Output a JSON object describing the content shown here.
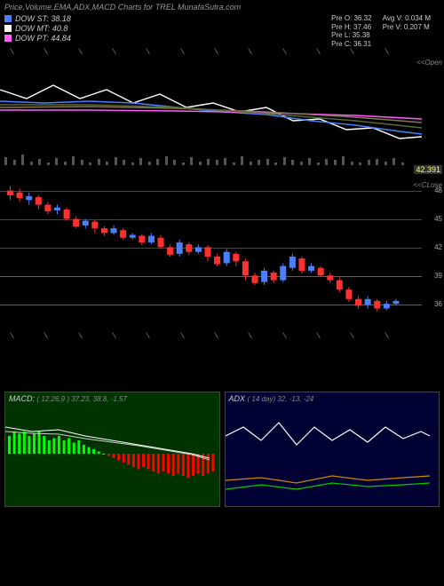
{
  "header": {
    "title": "Price,Volume,EMA,ADX,MACD Charts for TREL MunafaSutra.com"
  },
  "legend": {
    "items": [
      {
        "label": "DOW ST: 38.18",
        "color": "#4a7fff"
      },
      {
        "label": "DOW MT: 40.8",
        "color": "#ffffff"
      },
      {
        "label": "DOW PT: 44.84",
        "color": "#ff5fff"
      }
    ],
    "pre_col1": [
      "Pre  O: 36.32",
      "Pre  H: 37.46",
      "Pre  L: 35.38",
      "Pre  C: 36.31"
    ],
    "pre_col2": [
      "Avg V: 0.034  M",
      "Pre  V: 0.207 M"
    ]
  },
  "top_chart": {
    "height": 120,
    "open_label": "<<Open",
    "ema_lines": [
      {
        "color": "#ffffff",
        "pts": [
          [
            0,
            35
          ],
          [
            30,
            45
          ],
          [
            60,
            30
          ],
          [
            90,
            45
          ],
          [
            120,
            35
          ],
          [
            150,
            50
          ],
          [
            180,
            40
          ],
          [
            210,
            55
          ],
          [
            240,
            50
          ],
          [
            270,
            60
          ],
          [
            300,
            55
          ],
          [
            330,
            70
          ],
          [
            360,
            68
          ],
          [
            390,
            80
          ],
          [
            420,
            78
          ],
          [
            450,
            90
          ],
          [
            475,
            88
          ]
        ]
      },
      {
        "color": "#4a7fff",
        "pts": [
          [
            0,
            48
          ],
          [
            50,
            50
          ],
          [
            100,
            48
          ],
          [
            150,
            50
          ],
          [
            200,
            55
          ],
          [
            250,
            60
          ],
          [
            300,
            63
          ],
          [
            350,
            70
          ],
          [
            400,
            75
          ],
          [
            450,
            82
          ],
          [
            475,
            85
          ]
        ]
      },
      {
        "color": "#ff5fff",
        "pts": [
          [
            0,
            58
          ],
          [
            100,
            58
          ],
          [
            200,
            59
          ],
          [
            300,
            61
          ],
          [
            400,
            64
          ],
          [
            475,
            68
          ]
        ]
      },
      {
        "color": "#8b7355",
        "pts": [
          [
            0,
            55
          ],
          [
            100,
            54
          ],
          [
            200,
            56
          ],
          [
            300,
            60
          ],
          [
            400,
            66
          ],
          [
            475,
            72
          ]
        ]
      },
      {
        "color": "#556b2f",
        "pts": [
          [
            0,
            52
          ],
          [
            100,
            52
          ],
          [
            200,
            55
          ],
          [
            300,
            62
          ],
          [
            400,
            70
          ],
          [
            475,
            78
          ]
        ]
      }
    ],
    "volumes": [
      8,
      5,
      10,
      4,
      6,
      3,
      7,
      4,
      9,
      5,
      3,
      6,
      4,
      8,
      5,
      3,
      7,
      4,
      6,
      9,
      5,
      3,
      8,
      4,
      6,
      5,
      7,
      3,
      9,
      4,
      5,
      6,
      3,
      8,
      5,
      4,
      7,
      3,
      6,
      5,
      9,
      4,
      3,
      5,
      6,
      4,
      7,
      3
    ]
  },
  "close_marker": {
    "value": "42.391",
    "color": "#ffff80"
  },
  "candle_chart": {
    "height": 170,
    "y_min": 33,
    "y_max": 49,
    "grid_lines": [
      {
        "v": 48,
        "color": "#444"
      },
      {
        "v": 45,
        "color": "#444"
      },
      {
        "v": 42,
        "color": "#444"
      },
      {
        "v": 39,
        "color": "#806000"
      },
      {
        "v": 36,
        "color": "#806000"
      }
    ],
    "y_labels": [
      "48",
      "45",
      "42",
      "39",
      "36"
    ],
    "close_label": "<<CLose",
    "candles": [
      {
        "o": 48.0,
        "c": 47.5,
        "h": 48.5,
        "l": 47.0,
        "t": "d"
      },
      {
        "o": 47.8,
        "c": 47.2,
        "h": 48.2,
        "l": 46.8,
        "t": "d"
      },
      {
        "o": 47.0,
        "c": 47.4,
        "h": 47.8,
        "l": 46.5,
        "t": "u"
      },
      {
        "o": 47.3,
        "c": 46.5,
        "h": 47.5,
        "l": 46.0,
        "t": "d"
      },
      {
        "o": 46.5,
        "c": 45.8,
        "h": 46.8,
        "l": 45.5,
        "t": "d"
      },
      {
        "o": 45.9,
        "c": 46.2,
        "h": 46.5,
        "l": 45.5,
        "t": "u"
      },
      {
        "o": 46.0,
        "c": 45.0,
        "h": 46.2,
        "l": 44.8,
        "t": "d"
      },
      {
        "o": 45.0,
        "c": 44.2,
        "h": 45.3,
        "l": 44.0,
        "t": "d"
      },
      {
        "o": 44.3,
        "c": 44.8,
        "h": 45.0,
        "l": 44.0,
        "t": "u"
      },
      {
        "o": 44.7,
        "c": 44.0,
        "h": 44.9,
        "l": 43.5,
        "t": "d"
      },
      {
        "o": 44.0,
        "c": 43.5,
        "h": 44.2,
        "l": 43.2,
        "t": "d"
      },
      {
        "o": 43.5,
        "c": 44.0,
        "h": 44.3,
        "l": 43.3,
        "t": "u"
      },
      {
        "o": 43.8,
        "c": 43.0,
        "h": 44.0,
        "l": 42.8,
        "t": "d"
      },
      {
        "o": 43.0,
        "c": 43.3,
        "h": 43.5,
        "l": 42.8,
        "t": "u"
      },
      {
        "o": 43.2,
        "c": 42.5,
        "h": 43.4,
        "l": 42.2,
        "t": "d"
      },
      {
        "o": 42.5,
        "c": 43.2,
        "h": 43.5,
        "l": 42.3,
        "t": "u"
      },
      {
        "o": 43.0,
        "c": 42.0,
        "h": 43.3,
        "l": 41.8,
        "t": "d"
      },
      {
        "o": 42.0,
        "c": 41.2,
        "h": 42.3,
        "l": 41.0,
        "t": "d"
      },
      {
        "o": 41.3,
        "c": 42.5,
        "h": 42.8,
        "l": 41.0,
        "t": "u"
      },
      {
        "o": 42.3,
        "c": 41.5,
        "h": 42.5,
        "l": 41.2,
        "t": "d"
      },
      {
        "o": 41.5,
        "c": 42.0,
        "h": 42.3,
        "l": 41.3,
        "t": "u"
      },
      {
        "o": 42.0,
        "c": 41.0,
        "h": 42.2,
        "l": 40.5,
        "t": "d"
      },
      {
        "o": 41.0,
        "c": 40.2,
        "h": 41.3,
        "l": 40.0,
        "t": "d"
      },
      {
        "o": 40.3,
        "c": 41.5,
        "h": 41.8,
        "l": 40.0,
        "t": "u"
      },
      {
        "o": 41.3,
        "c": 40.5,
        "h": 41.5,
        "l": 40.0,
        "t": "d"
      },
      {
        "o": 40.5,
        "c": 39.0,
        "h": 40.8,
        "l": 38.5,
        "t": "d"
      },
      {
        "o": 39.0,
        "c": 38.2,
        "h": 39.3,
        "l": 38.0,
        "t": "d"
      },
      {
        "o": 38.3,
        "c": 39.5,
        "h": 39.8,
        "l": 38.0,
        "t": "u"
      },
      {
        "o": 39.3,
        "c": 38.5,
        "h": 39.5,
        "l": 38.2,
        "t": "d"
      },
      {
        "o": 38.5,
        "c": 40.0,
        "h": 40.3,
        "l": 38.3,
        "t": "u"
      },
      {
        "o": 39.8,
        "c": 41.0,
        "h": 41.3,
        "l": 39.5,
        "t": "u"
      },
      {
        "o": 40.8,
        "c": 39.5,
        "h": 41.0,
        "l": 39.2,
        "t": "d"
      },
      {
        "o": 39.5,
        "c": 40.0,
        "h": 40.3,
        "l": 39.3,
        "t": "u"
      },
      {
        "o": 39.8,
        "c": 39.0,
        "h": 40.0,
        "l": 38.8,
        "t": "d"
      },
      {
        "o": 39.0,
        "c": 38.5,
        "h": 39.3,
        "l": 38.2,
        "t": "d"
      },
      {
        "o": 38.5,
        "c": 37.5,
        "h": 38.8,
        "l": 37.2,
        "t": "d"
      },
      {
        "o": 37.5,
        "c": 36.5,
        "h": 37.8,
        "l": 36.2,
        "t": "d"
      },
      {
        "o": 36.5,
        "c": 35.8,
        "h": 36.8,
        "l": 35.5,
        "t": "d"
      },
      {
        "o": 35.9,
        "c": 36.5,
        "h": 36.8,
        "l": 35.5,
        "t": "u"
      },
      {
        "o": 36.3,
        "c": 35.5,
        "h": 36.5,
        "l": 35.2,
        "t": "d"
      },
      {
        "o": 35.5,
        "c": 36.0,
        "h": 36.3,
        "l": 35.3,
        "t": "u"
      },
      {
        "o": 36.0,
        "c": 36.3,
        "h": 36.5,
        "l": 35.8,
        "t": "u"
      }
    ]
  },
  "month_ticks": [
    "",
    "",
    "",
    "",
    "",
    "",
    "",
    "",
    "",
    "",
    "",
    ""
  ],
  "macd": {
    "title": "MACD:",
    "params": "( 12,26,9 ) 37.23,  38.8,  -1.57",
    "bg": "#003300",
    "hist": [
      0.4,
      0.5,
      0.45,
      0.5,
      0.4,
      0.45,
      0.5,
      0.4,
      0.3,
      0.35,
      0.4,
      0.3,
      0.35,
      0.25,
      0.3,
      0.2,
      0.15,
      0.1,
      0.05,
      0.0,
      -0.05,
      -0.1,
      -0.15,
      -0.2,
      -0.25,
      -0.3,
      -0.35,
      -0.3,
      -0.35,
      -0.4,
      -0.45,
      -0.4,
      -0.45,
      -0.5,
      -0.45,
      -0.5,
      -0.55,
      -0.5,
      -0.45,
      -0.5,
      -0.45,
      -0.4
    ],
    "pos_color": "#00ff00",
    "neg_color": "#ff0000",
    "lines": [
      {
        "color": "#ffffff",
        "pts": [
          [
            0,
            25
          ],
          [
            30,
            30
          ],
          [
            60,
            28
          ],
          [
            90,
            35
          ],
          [
            120,
            40
          ],
          [
            150,
            45
          ],
          [
            180,
            50
          ],
          [
            210,
            55
          ],
          [
            230,
            60
          ]
        ]
      },
      {
        "color": "#cccccc",
        "pts": [
          [
            0,
            30
          ],
          [
            30,
            32
          ],
          [
            60,
            33
          ],
          [
            90,
            38
          ],
          [
            120,
            42
          ],
          [
            150,
            46
          ],
          [
            180,
            51
          ],
          [
            210,
            56
          ],
          [
            230,
            62
          ]
        ]
      }
    ]
  },
  "adx": {
    "title": "ADX",
    "params": "( 14   day) 32,  -13,   -24",
    "bg": "#000033",
    "lines": [
      {
        "color": "#ffffff",
        "pts": [
          [
            0,
            35
          ],
          [
            20,
            25
          ],
          [
            40,
            40
          ],
          [
            60,
            20
          ],
          [
            80,
            45
          ],
          [
            100,
            25
          ],
          [
            120,
            40
          ],
          [
            140,
            28
          ],
          [
            160,
            42
          ],
          [
            180,
            25
          ],
          [
            200,
            38
          ],
          [
            220,
            30
          ],
          [
            230,
            35
          ]
        ]
      },
      {
        "color": "#cc8800",
        "pts": [
          [
            0,
            85
          ],
          [
            40,
            82
          ],
          [
            80,
            88
          ],
          [
            120,
            80
          ],
          [
            160,
            85
          ],
          [
            200,
            82
          ],
          [
            230,
            80
          ]
        ]
      },
      {
        "color": "#00cc00",
        "pts": [
          [
            0,
            95
          ],
          [
            40,
            90
          ],
          [
            80,
            95
          ],
          [
            120,
            88
          ],
          [
            160,
            92
          ],
          [
            200,
            90
          ],
          [
            230,
            88
          ]
        ]
      }
    ]
  }
}
